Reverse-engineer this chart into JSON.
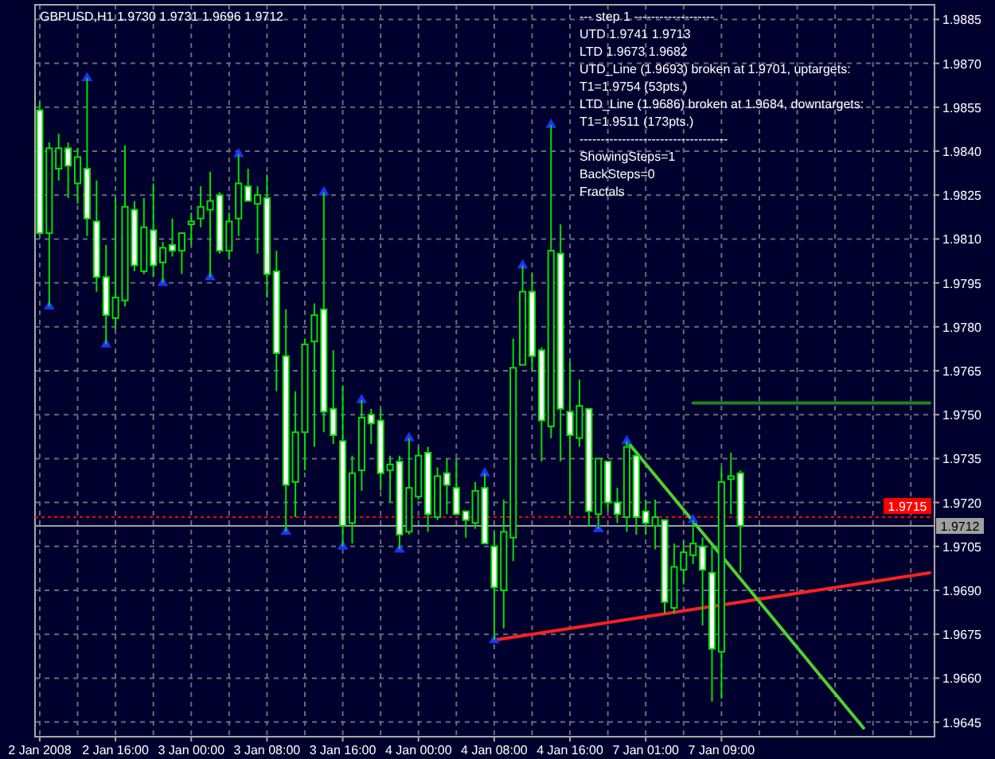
{
  "chart_data": {
    "type": "candlestick",
    "title": "GBPUSD,H1  1.9730 1.9731 1.9696 1.9712",
    "annotations": [
      "---  step 1  -------------------",
      "UTD 1.9741  1.9713",
      "LTD  1.9673  1.9682",
      "UTD_Line (1.9693) broken at 1.9701, uptargets:",
      "T1=1.9754 (53pts.)",
      "LTD_Line (1.9686) broken at 1.9684, downtargets:",
      "T1=1.9511 (173pts.)",
      "-----------------------------------",
      "ShowingSteps=1",
      "BackSteps=0",
      "Fractals"
    ],
    "color": "#00e000",
    "categories": [
      "2 Jan 2008",
      null,
      null,
      null,
      null,
      null,
      null,
      null,
      "2 Jan 16:00",
      null,
      null,
      null,
      null,
      null,
      null,
      null,
      "3 Jan 00:00",
      null,
      null,
      null,
      null,
      null,
      null,
      null,
      "3 Jan 08:00",
      null,
      null,
      null,
      null,
      null,
      null,
      null,
      "3 Jan 16:00",
      null,
      null,
      null,
      null,
      null,
      null,
      null,
      "4 Jan 00:00",
      null,
      null,
      null,
      null,
      null,
      null,
      null,
      "4 Jan 08:00",
      null,
      null,
      null,
      null,
      null,
      null,
      null,
      "4 Jan 16:00",
      null,
      null,
      null,
      null,
      null,
      null,
      null,
      "7 Jan 01:00",
      null,
      null,
      null,
      null,
      null,
      null,
      null,
      "7 Jan 09:00",
      null,
      null,
      null,
      null,
      null,
      null,
      null,
      null,
      null,
      null,
      null,
      null,
      null,
      null,
      null,
      null,
      null,
      null,
      null,
      null,
      null,
      null
    ],
    "ohlc": [
      [
        1.9854,
        1.9857,
        1.9811,
        1.9812
      ],
      [
        1.9812,
        1.9843,
        1.9787,
        1.9841
      ],
      [
        1.9834,
        1.9846,
        1.983,
        1.9841
      ],
      [
        1.9841,
        1.9843,
        1.9824,
        1.9835
      ],
      [
        1.9829,
        1.9841,
        1.9822,
        1.9838
      ],
      [
        1.9834,
        1.9865,
        1.9811,
        1.9817
      ],
      [
        1.9816,
        1.983,
        1.9792,
        1.9797
      ],
      [
        1.9797,
        1.9808,
        1.9774,
        1.9784
      ],
      [
        1.9783,
        1.9824,
        1.9779,
        1.979
      ],
      [
        1.9789,
        1.9842,
        1.9787,
        1.9821
      ],
      [
        1.982,
        1.9823,
        1.9799,
        1.9801
      ],
      [
        1.9799,
        1.9824,
        1.9798,
        1.9814
      ],
      [
        1.9813,
        1.9829,
        1.9797,
        1.9801
      ],
      [
        1.9802,
        1.9809,
        1.9795,
        1.9807
      ],
      [
        1.9808,
        1.9817,
        1.9804,
        1.9806
      ],
      [
        1.9806,
        1.9812,
        1.9798,
        1.9812
      ],
      [
        1.9815,
        1.9819,
        1.9808,
        1.9816
      ],
      [
        1.9817,
        1.9828,
        1.9814,
        1.9821
      ],
      [
        1.982,
        1.9833,
        1.9797,
        1.9823
      ],
      [
        1.9825,
        1.9826,
        1.9805,
        1.9806
      ],
      [
        1.9806,
        1.9819,
        1.9803,
        1.9816
      ],
      [
        1.9817,
        1.9839,
        1.9811,
        1.9829
      ],
      [
        1.9828,
        1.9834,
        1.9823,
        1.9823
      ],
      [
        1.9822,
        1.9828,
        1.9805,
        1.9825
      ],
      [
        1.9824,
        1.9832,
        1.979,
        1.9798
      ],
      [
        1.9799,
        1.9806,
        1.9758,
        1.9771
      ],
      [
        1.977,
        1.9786,
        1.971,
        1.9726
      ],
      [
        1.9727,
        1.9758,
        1.9715,
        1.9744
      ],
      [
        1.9744,
        1.9776,
        1.9731,
        1.9774
      ],
      [
        1.9775,
        1.9788,
        1.9739,
        1.9784
      ],
      [
        1.9786,
        1.9826,
        1.9744,
        1.9751
      ],
      [
        1.9752,
        1.9772,
        1.974,
        1.9743
      ],
      [
        1.9741,
        1.976,
        1.9705,
        1.9712
      ],
      [
        1.9713,
        1.9736,
        1.9706,
        1.973
      ],
      [
        1.9731,
        1.9755,
        1.9724,
        1.9749
      ],
      [
        1.975,
        1.9752,
        1.974,
        1.9747
      ],
      [
        1.9748,
        1.9752,
        1.9724,
        1.973
      ],
      [
        1.9731,
        1.9736,
        1.972,
        1.9733
      ],
      [
        1.9734,
        1.9736,
        1.9704,
        1.9709
      ],
      [
        1.971,
        1.9742,
        1.9709,
        1.9725
      ],
      [
        1.9722,
        1.9739,
        1.9721,
        1.9736
      ],
      [
        1.9737,
        1.9739,
        1.971,
        1.9716
      ],
      [
        1.9715,
        1.9732,
        1.9714,
        1.9729
      ],
      [
        1.973,
        1.9735,
        1.9716,
        1.9726
      ],
      [
        1.9725,
        1.9735,
        1.9716,
        1.9716
      ],
      [
        1.9717,
        1.9717,
        1.9708,
        1.9714
      ],
      [
        1.9713,
        1.9727,
        1.9711,
        1.9724
      ],
      [
        1.9725,
        1.973,
        1.9706,
        1.9706
      ],
      [
        1.9705,
        1.971,
        1.9673,
        1.9691
      ],
      [
        1.969,
        1.9721,
        1.9677,
        1.971
      ],
      [
        1.9708,
        1.9776,
        1.97,
        1.9766
      ],
      [
        1.9767,
        1.9801,
        1.9767,
        1.9792
      ],
      [
        1.9792,
        1.9798,
        1.9765,
        1.977
      ],
      [
        1.9772,
        1.9773,
        1.9734,
        1.9748
      ],
      [
        1.9746,
        1.9849,
        1.9742,
        1.9806
      ],
      [
        1.9805,
        1.9815,
        1.9734,
        1.9752
      ],
      [
        1.9751,
        1.9768,
        1.9716,
        1.9743
      ],
      [
        1.9742,
        1.9762,
        1.9739,
        1.9753
      ],
      [
        1.9752,
        1.9752,
        1.9712,
        1.9717
      ],
      [
        1.9716,
        1.9735,
        1.9711,
        1.9735
      ],
      [
        1.9734,
        1.9734,
        1.9717,
        1.972
      ],
      [
        1.972,
        1.9725,
        1.9713,
        1.9716
      ],
      [
        1.9715,
        1.9741,
        1.971,
        1.9739
      ],
      [
        1.9736,
        1.9737,
        1.9709,
        1.9715
      ],
      [
        1.9717,
        1.9721,
        1.9709,
        1.9713
      ],
      [
        1.9712,
        1.9721,
        1.9704,
        1.9715
      ],
      [
        1.9714,
        1.9714,
        1.9682,
        1.9686
      ],
      [
        1.9684,
        1.9706,
        1.9682,
        1.9698
      ],
      [
        1.9697,
        1.9707,
        1.9692,
        1.9703
      ],
      [
        1.9702,
        1.9714,
        1.9699,
        1.9706
      ],
      [
        1.9705,
        1.9708,
        1.9678,
        1.9697
      ],
      [
        1.9696,
        1.9705,
        1.9652,
        1.967
      ],
      [
        1.9669,
        1.9732,
        1.9653,
        1.9727
      ],
      [
        1.9728,
        1.9737,
        1.9716,
        1.9729
      ],
      [
        1.973,
        1.9731,
        1.9696,
        1.9712
      ],
      null,
      null,
      null,
      null,
      null,
      null,
      null,
      null,
      null,
      null,
      null,
      null,
      null,
      null,
      null,
      null,
      null,
      null,
      null,
      null
    ],
    "series": [
      {
        "type": "line",
        "color": "#ff2020",
        "values": [
          null,
          null,
          null,
          null,
          null,
          null,
          null,
          null,
          null,
          null,
          null,
          null,
          null,
          null,
          null,
          null,
          null,
          null,
          null,
          null,
          null,
          null,
          null,
          null,
          null,
          null,
          null,
          null,
          null,
          null,
          null,
          null,
          null,
          null,
          null,
          null,
          null,
          null,
          null,
          null,
          null,
          null,
          null,
          null,
          null,
          null,
          null,
          null,
          1.9673,
          null,
          null,
          null,
          null,
          null,
          null,
          null,
          null,
          null,
          null,
          null,
          null,
          null,
          null,
          null,
          null,
          null,
          null,
          null,
          null,
          null,
          null,
          null,
          null,
          null,
          null,
          null,
          null,
          null,
          null,
          null,
          null,
          null,
          null,
          null,
          null,
          null,
          null,
          null,
          null,
          null,
          null,
          null,
          null,
          null,
          1.9696
        ]
      },
      {
        "type": "line",
        "color": "#50d030",
        "values": [
          null,
          null,
          null,
          null,
          null,
          null,
          null,
          null,
          null,
          null,
          null,
          null,
          null,
          null,
          null,
          null,
          null,
          null,
          null,
          null,
          null,
          null,
          null,
          null,
          null,
          null,
          null,
          null,
          null,
          null,
          null,
          null,
          null,
          null,
          null,
          null,
          null,
          null,
          null,
          null,
          null,
          null,
          null,
          null,
          null,
          null,
          null,
          null,
          null,
          null,
          null,
          null,
          null,
          null,
          null,
          null,
          null,
          null,
          null,
          null,
          null,
          null,
          1.9741,
          null,
          null,
          null,
          null,
          null,
          null,
          null,
          null,
          null,
          null,
          null,
          null,
          null,
          null,
          null,
          null,
          null,
          null,
          null,
          null,
          null,
          null,
          null,
          null,
          1.9643,
          null,
          null,
          null,
          null,
          null,
          null,
          null
        ]
      },
      {
        "type": "line",
        "color": "#1a8a1a",
        "values": [
          null,
          null,
          null,
          null,
          null,
          null,
          null,
          null,
          null,
          null,
          null,
          null,
          null,
          null,
          null,
          null,
          null,
          null,
          null,
          null,
          null,
          null,
          null,
          null,
          null,
          null,
          null,
          null,
          null,
          null,
          null,
          null,
          null,
          null,
          null,
          null,
          null,
          null,
          null,
          null,
          null,
          null,
          null,
          null,
          null,
          null,
          null,
          null,
          null,
          null,
          null,
          null,
          null,
          null,
          null,
          null,
          null,
          null,
          null,
          null,
          null,
          null,
          null,
          null,
          null,
          null,
          null,
          null,
          null,
          1.9754,
          null,
          null,
          null,
          null,
          null,
          null,
          null,
          null,
          null,
          null,
          null,
          null,
          null,
          null,
          null,
          null,
          null,
          null,
          null,
          null,
          null,
          null,
          null,
          null,
          1.9754
        ]
      },
      {
        "type": "scatter",
        "color": "#2030ff",
        "marker": "triangle",
        "values": [
          null,
          null,
          null,
          null,
          null,
          1.9865,
          null,
          null,
          null,
          null,
          null,
          null,
          null,
          null,
          null,
          null,
          null,
          null,
          null,
          null,
          null,
          1.9839,
          null,
          null,
          null,
          null,
          null,
          null,
          null,
          null,
          1.9826,
          null,
          null,
          null,
          1.9755,
          null,
          null,
          null,
          null,
          1.9742,
          null,
          null,
          null,
          null,
          null,
          null,
          null,
          1.973,
          null,
          null,
          null,
          1.9801,
          null,
          null,
          1.9849,
          null,
          null,
          null,
          null,
          null,
          null,
          null,
          1.9741,
          null,
          null,
          null,
          null,
          null,
          null,
          1.9714,
          null,
          null,
          null,
          null,
          null,
          null,
          null,
          null,
          null,
          null,
          null,
          null,
          null,
          null,
          null,
          null,
          null,
          null,
          null,
          null,
          null,
          null,
          null,
          null,
          null
        ]
      },
      {
        "type": "scatter",
        "color": "#2030ff",
        "marker": "triangle",
        "values": [
          null,
          1.9787,
          null,
          null,
          null,
          null,
          null,
          1.9774,
          null,
          null,
          null,
          null,
          null,
          1.9795,
          null,
          null,
          null,
          null,
          1.9797,
          null,
          null,
          null,
          null,
          null,
          null,
          null,
          1.971,
          null,
          null,
          null,
          null,
          null,
          1.9705,
          null,
          null,
          null,
          null,
          null,
          1.9704,
          null,
          null,
          null,
          null,
          null,
          null,
          null,
          null,
          null,
          1.9673,
          null,
          null,
          null,
          null,
          null,
          null,
          null,
          null,
          null,
          null,
          1.9711,
          null,
          null,
          null,
          null,
          null,
          null,
          null,
          null,
          null,
          null,
          null,
          null,
          null,
          null,
          null,
          null,
          null,
          null,
          null,
          null,
          null,
          null,
          null,
          null,
          null,
          null,
          null,
          null,
          null,
          null,
          null,
          null,
          null,
          null,
          null
        ]
      }
    ],
    "ref_lines": [
      {
        "axis": "y",
        "value": 1.9715,
        "label": "1.9715",
        "color": "#ff0000",
        "line_style": "dotted"
      },
      {
        "axis": "y",
        "value": 1.9712,
        "label": "1.9712",
        "color": "#a0a0a0",
        "line_style": "solid"
      }
    ],
    "ylim": [
      1.964,
      1.989
    ],
    "yticks": [
      {
        "value": 1.9645,
        "label": "1.9645"
      },
      {
        "value": 1.966,
        "label": "1.9660"
      },
      {
        "value": 1.9675,
        "label": "1.9675"
      },
      {
        "value": 1.969,
        "label": "1.9690"
      },
      {
        "value": 1.9705,
        "label": "1.9705"
      },
      {
        "value": 1.972,
        "label": "1.9720"
      },
      {
        "value": 1.9735,
        "label": "1.9735"
      },
      {
        "value": 1.975,
        "label": "1.9750"
      },
      {
        "value": 1.9765,
        "label": "1.9765"
      },
      {
        "value": 1.978,
        "label": "1.9780"
      },
      {
        "value": 1.9795,
        "label": "1.9795"
      },
      {
        "value": 1.981,
        "label": "1.9810"
      },
      {
        "value": 1.9825,
        "label": "1.9825"
      },
      {
        "value": 1.984,
        "label": "1.9840"
      },
      {
        "value": 1.9855,
        "label": "1.9855"
      },
      {
        "value": 1.987,
        "label": "1.9870"
      },
      {
        "value": 1.9885,
        "label": "1.9885"
      }
    ],
    "grid": true
  }
}
